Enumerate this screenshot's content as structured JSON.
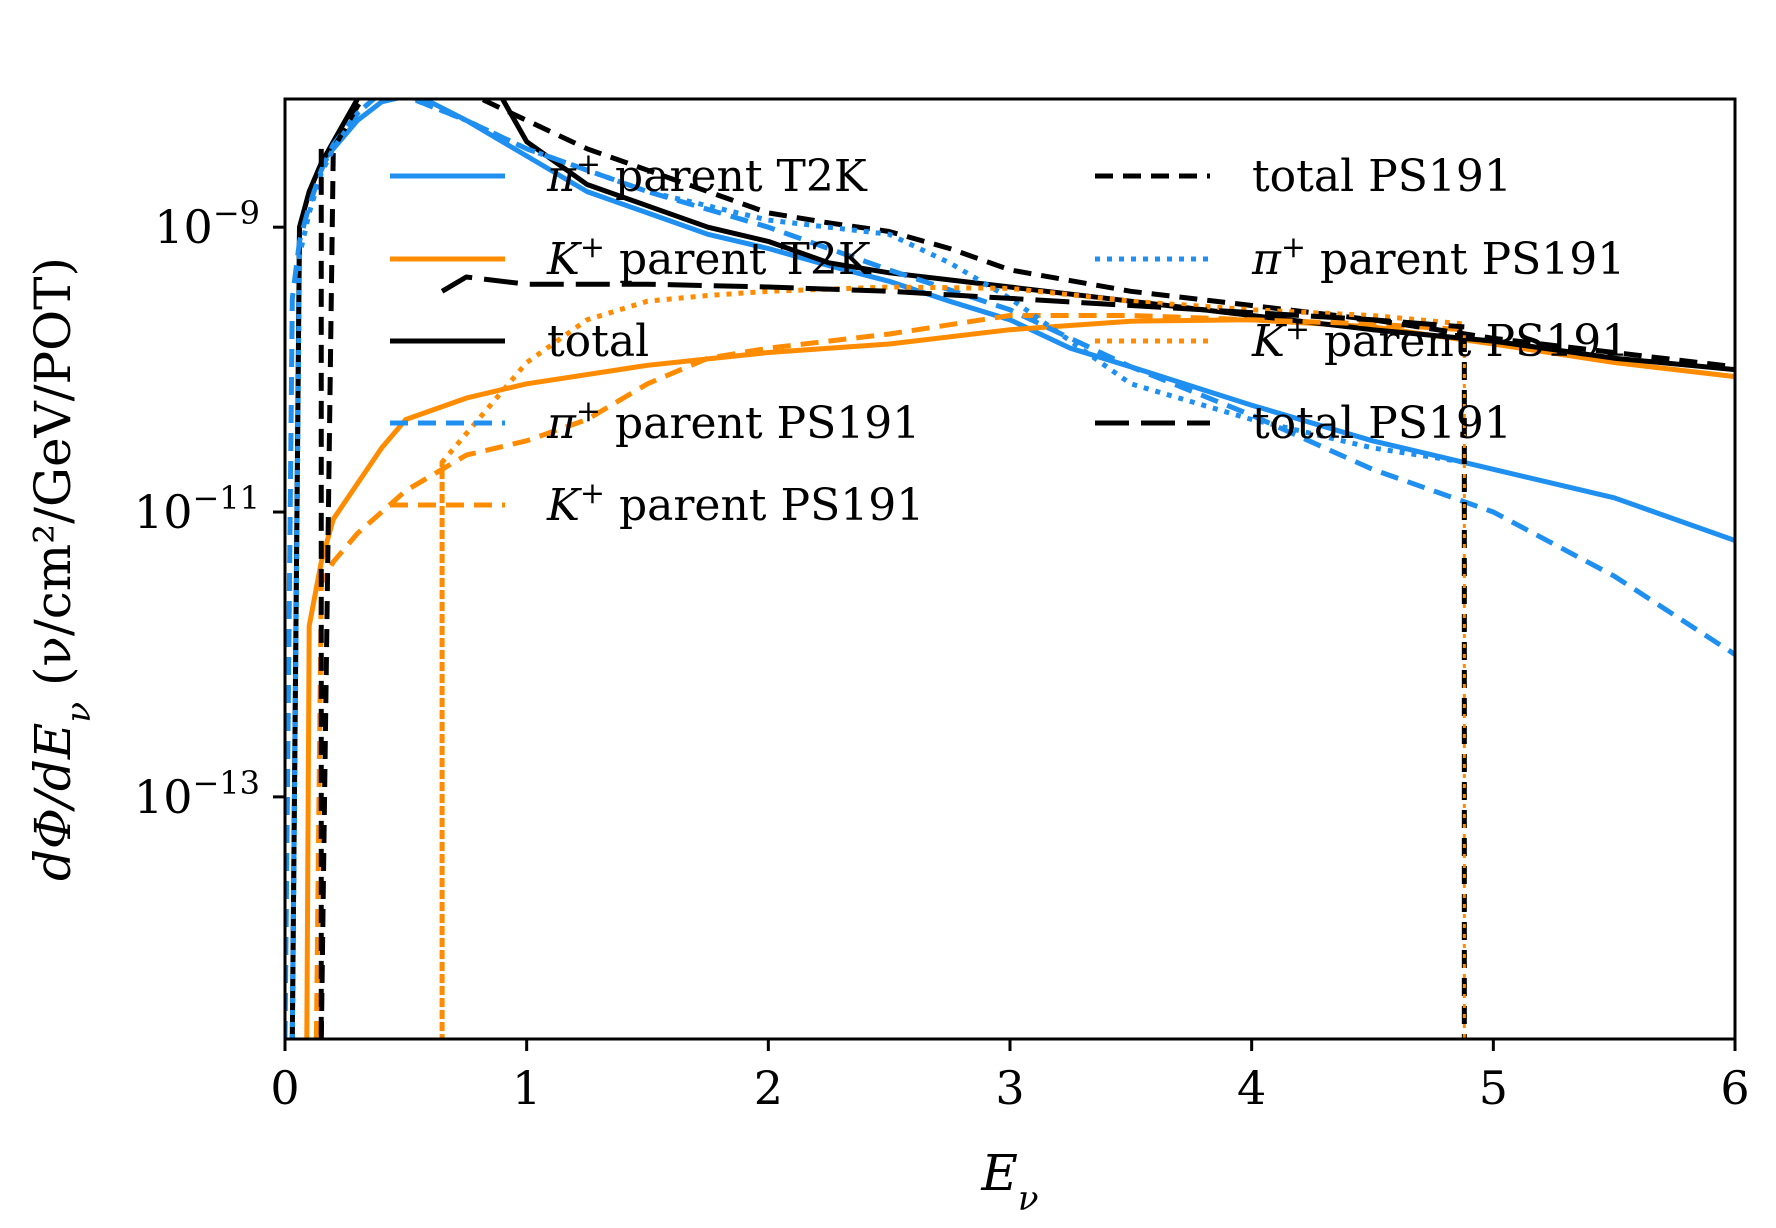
{
  "chart_data": {
    "type": "line",
    "xlabel": "E_ν",
    "ylabel": "dΦ/dE_ν (ν/cm²/GeV/POT)",
    "xlim": [
      0,
      6
    ],
    "ylim_log10": [
      -14.7,
      -8.1
    ],
    "yscale": "log",
    "grid": false,
    "legend_placement": "upper, two columns",
    "x_ticks": [
      {
        "value": 0,
        "label": "0"
      },
      {
        "value": 1,
        "label": "1"
      },
      {
        "value": 2,
        "label": "2"
      },
      {
        "value": 3,
        "label": "3"
      },
      {
        "value": 4,
        "label": "4"
      },
      {
        "value": 5,
        "label": "5"
      },
      {
        "value": 6,
        "label": "6"
      }
    ],
    "y_ticks": [
      {
        "log10": -9,
        "base": "10",
        "exp": "−9"
      },
      {
        "log10": -11,
        "base": "10",
        "exp": "−11"
      },
      {
        "log10": -13,
        "base": "10",
        "exp": "−13"
      }
    ],
    "colors": {
      "pi": "#1f8ff0",
      "k": "#ff8c00",
      "total": "#000000"
    },
    "series": [
      {
        "name": "π⁺ parent T2K",
        "color": "#1f8ff0",
        "style": "solid",
        "log10": true,
        "x": [
          0.03,
          0.06,
          0.1,
          0.15,
          0.2,
          0.3,
          0.4,
          0.5,
          0.6,
          0.75,
          1.0,
          1.25,
          1.5,
          1.75,
          2.0,
          2.25,
          2.5,
          2.75,
          3.0,
          3.25,
          3.5,
          4.0,
          4.5,
          5.0,
          5.5,
          6.0
        ],
        "y": [
          -14.7,
          -9.0,
          -8.75,
          -8.55,
          -8.45,
          -8.25,
          -8.12,
          -8.08,
          -8.12,
          -8.25,
          -8.5,
          -8.75,
          -8.9,
          -9.05,
          -9.15,
          -9.27,
          -9.38,
          -9.52,
          -9.65,
          -9.85,
          -9.98,
          -10.25,
          -10.5,
          -10.7,
          -10.9,
          -11.2
        ]
      },
      {
        "name": "K⁺ parent T2K",
        "color": "#ff8c00",
        "style": "solid",
        "log10": true,
        "x": [
          0.09,
          0.1,
          0.15,
          0.2,
          0.3,
          0.4,
          0.5,
          0.75,
          1.0,
          1.5,
          2.0,
          2.5,
          3.0,
          3.5,
          4.0,
          4.5,
          5.0,
          5.5,
          6.0
        ],
        "y": [
          -14.7,
          -11.8,
          -11.35,
          -11.05,
          -10.8,
          -10.55,
          -10.35,
          -10.2,
          -10.1,
          -9.97,
          -9.88,
          -9.82,
          -9.72,
          -9.66,
          -9.65,
          -9.7,
          -9.82,
          -9.95,
          -10.05
        ]
      },
      {
        "name": "total",
        "color": "#000000",
        "style": "solid",
        "log10": true,
        "x": [
          0.03,
          0.06,
          0.1,
          0.15,
          0.2,
          0.3,
          0.4,
          0.5,
          0.55,
          0.6,
          0.7,
          0.8,
          0.9,
          1.0,
          1.25,
          1.5,
          1.75,
          2.0,
          2.25,
          2.5,
          2.75,
          3.0,
          3.5,
          4.0,
          4.5,
          5.0,
          5.5,
          6.0
        ],
        "y": [
          -14.7,
          -9.0,
          -8.75,
          -8.55,
          -8.4,
          -8.1,
          -7.88,
          -7.77,
          -7.73,
          -7.73,
          -7.8,
          -7.88,
          -8.1,
          -8.4,
          -8.7,
          -8.85,
          -9.0,
          -9.1,
          -9.25,
          -9.32,
          -9.37,
          -9.42,
          -9.52,
          -9.62,
          -9.72,
          -9.8,
          -9.92,
          -10.0
        ]
      },
      {
        "name": "π⁺ parent PS191",
        "color": "#1f8ff0",
        "style": "dashed",
        "log10": true,
        "x": [
          0.0,
          0.03,
          0.06,
          0.1,
          0.15,
          0.2,
          0.3,
          0.4,
          0.5,
          0.75,
          1.0,
          1.5,
          2.0,
          2.5,
          3.0,
          3.5,
          4.0,
          4.5,
          5.0,
          5.5,
          6.0
        ],
        "y": [
          -14.7,
          -9.5,
          -9.1,
          -8.85,
          -8.6,
          -8.42,
          -8.2,
          -8.05,
          -8.08,
          -8.25,
          -8.45,
          -8.75,
          -9.0,
          -9.3,
          -9.58,
          -9.98,
          -10.32,
          -10.7,
          -11.0,
          -11.45,
          -12.0
        ]
      },
      {
        "name": "K⁺ parent PS191",
        "color": "#ff8c00",
        "style": "dashed",
        "log10": true,
        "x": [
          0.13,
          0.15,
          0.2,
          0.3,
          0.4,
          0.5,
          0.6,
          0.75,
          1.0,
          1.25,
          1.5,
          1.75,
          2.0,
          2.5,
          3.0,
          3.5,
          4.0,
          4.5,
          4.88
        ],
        "y": [
          -14.7,
          -11.5,
          -11.35,
          -11.15,
          -11.0,
          -10.85,
          -10.75,
          -10.6,
          -10.5,
          -10.35,
          -10.1,
          -9.92,
          -9.85,
          -9.75,
          -9.62,
          -9.62,
          -9.65,
          -9.68,
          -9.72
        ]
      },
      {
        "name": "total PS191",
        "color": "#000000",
        "style": "dashed",
        "log10": true,
        "x": [
          0.15,
          0.2,
          0.3,
          0.4,
          0.5,
          0.6,
          0.75,
          1.0,
          1.25,
          1.5,
          1.75,
          2.0,
          2.25,
          2.5,
          2.75,
          3.0,
          3.5,
          4.0,
          4.5,
          5.0,
          5.5,
          6.0
        ],
        "y": [
          -14.7,
          -8.45,
          -8.15,
          -7.92,
          -7.85,
          -7.9,
          -8.05,
          -8.25,
          -8.45,
          -8.6,
          -8.75,
          -8.9,
          -8.97,
          -9.03,
          -9.15,
          -9.3,
          -9.45,
          -9.55,
          -9.65,
          -9.78,
          -9.88,
          -9.98
        ]
      },
      {
        "name": "π⁺ parent PS191",
        "color": "#1f8ff0",
        "style": "dotted",
        "log10": true,
        "x": [
          0.03,
          0.06,
          0.1,
          0.15,
          0.2,
          0.3,
          0.4,
          0.5,
          0.75,
          1.0,
          1.5,
          2.0,
          2.5,
          2.75,
          3.0,
          3.5,
          4.0,
          4.5,
          4.88
        ],
        "y": [
          -14.7,
          -9.2,
          -8.9,
          -8.62,
          -8.45,
          -8.2,
          -8.05,
          -8.08,
          -8.25,
          -8.45,
          -8.75,
          -8.95,
          -9.05,
          -9.25,
          -9.5,
          -10.1,
          -10.35,
          -10.55,
          -10.65
        ]
      },
      {
        "name": "K⁺ parent PS191",
        "color": "#ff8c00",
        "style": "dotted",
        "log10": true,
        "x": [
          0.65,
          0.65,
          0.7,
          0.8,
          0.9,
          1.0,
          1.25,
          1.5,
          1.75,
          2.0,
          2.5,
          3.0,
          3.5,
          4.0,
          4.5,
          4.88
        ],
        "y": [
          -14.7,
          -10.65,
          -10.55,
          -10.35,
          -10.15,
          -9.95,
          -9.65,
          -9.52,
          -9.48,
          -9.45,
          -9.42,
          -9.43,
          -9.52,
          -9.58,
          -9.62,
          -9.68
        ]
      },
      {
        "name": "total PS191",
        "color": "#000000",
        "style": "dashed-wide",
        "log10": true,
        "x": [
          0.65,
          0.75,
          1.0,
          1.5,
          2.0,
          2.5,
          3.0,
          3.5,
          4.0,
          4.5,
          4.88
        ],
        "y": [
          -9.45,
          -9.35,
          -9.4,
          -9.4,
          -9.42,
          -9.45,
          -9.5,
          -9.55,
          -9.6,
          -9.65,
          -9.7
        ]
      }
    ],
    "vertical_drops": [
      {
        "x": 0.15,
        "top_log10": -8.45,
        "color": "#000000",
        "style": "dashed"
      },
      {
        "x": 0.65,
        "top_log10": -10.65,
        "color": "#ff8c00",
        "style": "dotted"
      },
      {
        "x": 4.88,
        "top_log10": -9.75,
        "color": "#000000",
        "style": "dashed"
      },
      {
        "x": 4.88,
        "top_log10": -9.75,
        "color": "#ff8c00",
        "style": "dotted-thin"
      }
    ],
    "legend": [
      {
        "label_text": "π",
        "label_sup": "+",
        "label_rest": " parent T2K",
        "color": "#1f8ff0",
        "style": "solid",
        "col": 0,
        "row": 0
      },
      {
        "label_text": "K",
        "label_sup": "+",
        "label_rest": " parent T2K",
        "color": "#ff8c00",
        "style": "solid",
        "col": 0,
        "row": 1
      },
      {
        "label_text": "total",
        "label_sup": "",
        "label_rest": "",
        "color": "#000000",
        "style": "solid",
        "col": 0,
        "row": 2
      },
      {
        "label_text": "π",
        "label_sup": "+",
        "label_rest": " parent PS191",
        "color": "#1f8ff0",
        "style": "dashed",
        "col": 0,
        "row": 3
      },
      {
        "label_text": "K",
        "label_sup": "+",
        "label_rest": " parent PS191",
        "color": "#ff8c00",
        "style": "dashed",
        "col": 0,
        "row": 4
      },
      {
        "label_text": "total PS191",
        "label_sup": "",
        "label_rest": "",
        "color": "#000000",
        "style": "dashed",
        "col": 1,
        "row": 0
      },
      {
        "label_text": "π",
        "label_sup": "+",
        "label_rest": " parent PS191",
        "color": "#1f8ff0",
        "style": "dotted",
        "col": 1,
        "row": 1
      },
      {
        "label_text": "K",
        "label_sup": "+",
        "label_rest": " parent PS191",
        "color": "#ff8c00",
        "style": "dotted",
        "col": 1,
        "row": 2
      },
      {
        "label_text": "total PS191",
        "label_sup": "",
        "label_rest": "",
        "color": "#000000",
        "style": "dashed-wide",
        "col": 1,
        "row": 3
      }
    ]
  }
}
